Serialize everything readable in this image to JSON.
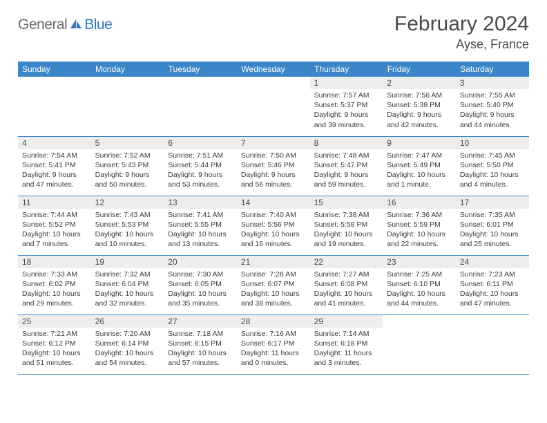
{
  "logo": {
    "text1": "General",
    "text2": "Blue",
    "color_general": "#6b6b6b",
    "color_blue": "#2f78bd",
    "sail_color": "#2f78bd"
  },
  "title": "February 2024",
  "location": "Ayse, France",
  "colors": {
    "header_bg": "#3a86c8",
    "header_text": "#ffffff",
    "daynum_bg": "#eceded",
    "cell_border": "#3a86c8",
    "body_text": "#3a3a3a"
  },
  "fonts": {
    "title_size": 30,
    "location_size": 18,
    "th_size": 12,
    "daynum_size": 12,
    "data_size": 10.5
  },
  "day_headers": [
    "Sunday",
    "Monday",
    "Tuesday",
    "Wednesday",
    "Thursday",
    "Friday",
    "Saturday"
  ],
  "weeks": [
    [
      {
        "empty": true
      },
      {
        "empty": true
      },
      {
        "empty": true
      },
      {
        "empty": true
      },
      {
        "n": "1",
        "sunrise": "7:57 AM",
        "sunset": "5:37 PM",
        "daylight": "9 hours and 39 minutes."
      },
      {
        "n": "2",
        "sunrise": "7:56 AM",
        "sunset": "5:38 PM",
        "daylight": "9 hours and 42 minutes."
      },
      {
        "n": "3",
        "sunrise": "7:55 AM",
        "sunset": "5:40 PM",
        "daylight": "9 hours and 44 minutes."
      }
    ],
    [
      {
        "n": "4",
        "sunrise": "7:54 AM",
        "sunset": "5:41 PM",
        "daylight": "9 hours and 47 minutes."
      },
      {
        "n": "5",
        "sunrise": "7:52 AM",
        "sunset": "5:43 PM",
        "daylight": "9 hours and 50 minutes."
      },
      {
        "n": "6",
        "sunrise": "7:51 AM",
        "sunset": "5:44 PM",
        "daylight": "9 hours and 53 minutes."
      },
      {
        "n": "7",
        "sunrise": "7:50 AM",
        "sunset": "5:46 PM",
        "daylight": "9 hours and 56 minutes."
      },
      {
        "n": "8",
        "sunrise": "7:48 AM",
        "sunset": "5:47 PM",
        "daylight": "9 hours and 59 minutes."
      },
      {
        "n": "9",
        "sunrise": "7:47 AM",
        "sunset": "5:49 PM",
        "daylight": "10 hours and 1 minute."
      },
      {
        "n": "10",
        "sunrise": "7:45 AM",
        "sunset": "5:50 PM",
        "daylight": "10 hours and 4 minutes."
      }
    ],
    [
      {
        "n": "11",
        "sunrise": "7:44 AM",
        "sunset": "5:52 PM",
        "daylight": "10 hours and 7 minutes."
      },
      {
        "n": "12",
        "sunrise": "7:43 AM",
        "sunset": "5:53 PM",
        "daylight": "10 hours and 10 minutes."
      },
      {
        "n": "13",
        "sunrise": "7:41 AM",
        "sunset": "5:55 PM",
        "daylight": "10 hours and 13 minutes."
      },
      {
        "n": "14",
        "sunrise": "7:40 AM",
        "sunset": "5:56 PM",
        "daylight": "10 hours and 16 minutes."
      },
      {
        "n": "15",
        "sunrise": "7:38 AM",
        "sunset": "5:58 PM",
        "daylight": "10 hours and 19 minutes."
      },
      {
        "n": "16",
        "sunrise": "7:36 AM",
        "sunset": "5:59 PM",
        "daylight": "10 hours and 22 minutes."
      },
      {
        "n": "17",
        "sunrise": "7:35 AM",
        "sunset": "6:01 PM",
        "daylight": "10 hours and 25 minutes."
      }
    ],
    [
      {
        "n": "18",
        "sunrise": "7:33 AM",
        "sunset": "6:02 PM",
        "daylight": "10 hours and 29 minutes."
      },
      {
        "n": "19",
        "sunrise": "7:32 AM",
        "sunset": "6:04 PM",
        "daylight": "10 hours and 32 minutes."
      },
      {
        "n": "20",
        "sunrise": "7:30 AM",
        "sunset": "6:05 PM",
        "daylight": "10 hours and 35 minutes."
      },
      {
        "n": "21",
        "sunrise": "7:28 AM",
        "sunset": "6:07 PM",
        "daylight": "10 hours and 38 minutes."
      },
      {
        "n": "22",
        "sunrise": "7:27 AM",
        "sunset": "6:08 PM",
        "daylight": "10 hours and 41 minutes."
      },
      {
        "n": "23",
        "sunrise": "7:25 AM",
        "sunset": "6:10 PM",
        "daylight": "10 hours and 44 minutes."
      },
      {
        "n": "24",
        "sunrise": "7:23 AM",
        "sunset": "6:11 PM",
        "daylight": "10 hours and 47 minutes."
      }
    ],
    [
      {
        "n": "25",
        "sunrise": "7:21 AM",
        "sunset": "6:12 PM",
        "daylight": "10 hours and 51 minutes."
      },
      {
        "n": "26",
        "sunrise": "7:20 AM",
        "sunset": "6:14 PM",
        "daylight": "10 hours and 54 minutes."
      },
      {
        "n": "27",
        "sunrise": "7:18 AM",
        "sunset": "6:15 PM",
        "daylight": "10 hours and 57 minutes."
      },
      {
        "n": "28",
        "sunrise": "7:16 AM",
        "sunset": "6:17 PM",
        "daylight": "11 hours and 0 minutes."
      },
      {
        "n": "29",
        "sunrise": "7:14 AM",
        "sunset": "6:18 PM",
        "daylight": "11 hours and 3 minutes."
      },
      {
        "empty": true
      },
      {
        "empty": true
      }
    ]
  ],
  "labels": {
    "sunrise": "Sunrise: ",
    "sunset": "Sunset: ",
    "daylight": "Daylight: "
  }
}
